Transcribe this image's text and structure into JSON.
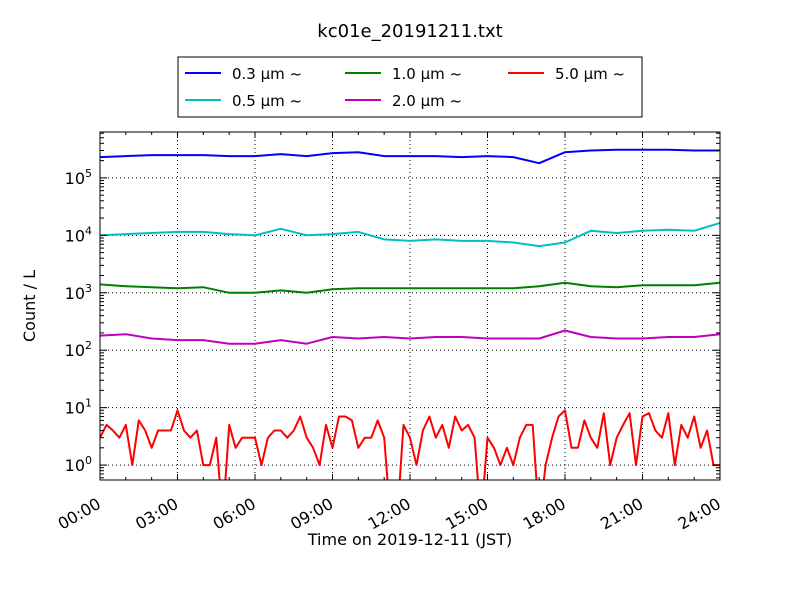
{
  "chart_data": {
    "type": "line",
    "title": "kc01e_20191211.txt",
    "xlabel": "Time on 2019-12-11 (JST)",
    "ylabel": "Count / L",
    "yscale": "log",
    "ylim": [
      0.55,
      630000
    ],
    "xlim_hours": [
      0,
      24
    ],
    "grid": true,
    "legend_placement": "top-center, outside plot",
    "x_tick_labels": [
      "00:00",
      "03:00",
      "06:00",
      "09:00",
      "12:00",
      "15:00",
      "18:00",
      "21:00",
      "24:00"
    ],
    "y_tick_labels": [
      {
        "value": 1,
        "base": "10",
        "exp": "0"
      },
      {
        "value": 10,
        "base": "10",
        "exp": "1"
      },
      {
        "value": 100,
        "base": "10",
        "exp": "2"
      },
      {
        "value": 1000,
        "base": "10",
        "exp": "3"
      },
      {
        "value": 10000,
        "base": "10",
        "exp": "4"
      },
      {
        "value": 100000,
        "base": "10",
        "exp": "5"
      }
    ],
    "series": [
      {
        "name": "0.3 μm ~",
        "color": "#0000ff",
        "x_step_hours": 1,
        "values": [
          230000,
          240000,
          250000,
          250000,
          250000,
          240000,
          240000,
          260000,
          240000,
          270000,
          280000,
          240000,
          240000,
          240000,
          230000,
          240000,
          230000,
          180000,
          280000,
          300000,
          310000,
          310000,
          310000,
          300000,
          300000
        ]
      },
      {
        "name": "0.5 μm ~",
        "color": "#00bfbf",
        "x_step_hours": 1,
        "values": [
          10000,
          10500,
          11000,
          11500,
          11500,
          10500,
          10000,
          13000,
          10000,
          10500,
          11500,
          8500,
          8000,
          8500,
          8000,
          8000,
          7500,
          6500,
          7500,
          12000,
          11000,
          12000,
          12500,
          12000,
          16500
        ]
      },
      {
        "name": "1.0 μm ~",
        "color": "#007f00",
        "x_step_hours": 1,
        "values": [
          1400,
          1300,
          1250,
          1200,
          1250,
          1000,
          1000,
          1100,
          1000,
          1150,
          1200,
          1200,
          1200,
          1200,
          1200,
          1200,
          1200,
          1300,
          1500,
          1300,
          1250,
          1350,
          1350,
          1350,
          1500
        ]
      },
      {
        "name": "2.0 μm ~",
        "color": "#bf00bf",
        "x_step_hours": 1,
        "values": [
          180,
          190,
          160,
          150,
          150,
          130,
          130,
          150,
          130,
          170,
          160,
          170,
          160,
          170,
          170,
          160,
          160,
          160,
          220,
          170,
          160,
          160,
          170,
          170,
          190
        ]
      },
      {
        "name": "5.0 μm ~",
        "color": "#ff0000",
        "x_step_hours": 0.25,
        "values": [
          3,
          5,
          4,
          3,
          5,
          1,
          6,
          4,
          2,
          4,
          4,
          4,
          9,
          4,
          3,
          4,
          1,
          1,
          3,
          0,
          5,
          2,
          3,
          3,
          3,
          1,
          3,
          4,
          4,
          3,
          4,
          7,
          3,
          2,
          1,
          5,
          2,
          7,
          7,
          6,
          2,
          3,
          3,
          6,
          3,
          0,
          0,
          5,
          3,
          1,
          4,
          7,
          3,
          5,
          2,
          7,
          4,
          5,
          3,
          0,
          3,
          2,
          1,
          2,
          1,
          3,
          5,
          5,
          0,
          1,
          3,
          7,
          9,
          2,
          2,
          6,
          3,
          2,
          8,
          1,
          3,
          5,
          8,
          1,
          7,
          8,
          4,
          3,
          8,
          1,
          5,
          3,
          7,
          2,
          4,
          1,
          1
        ]
      }
    ]
  }
}
